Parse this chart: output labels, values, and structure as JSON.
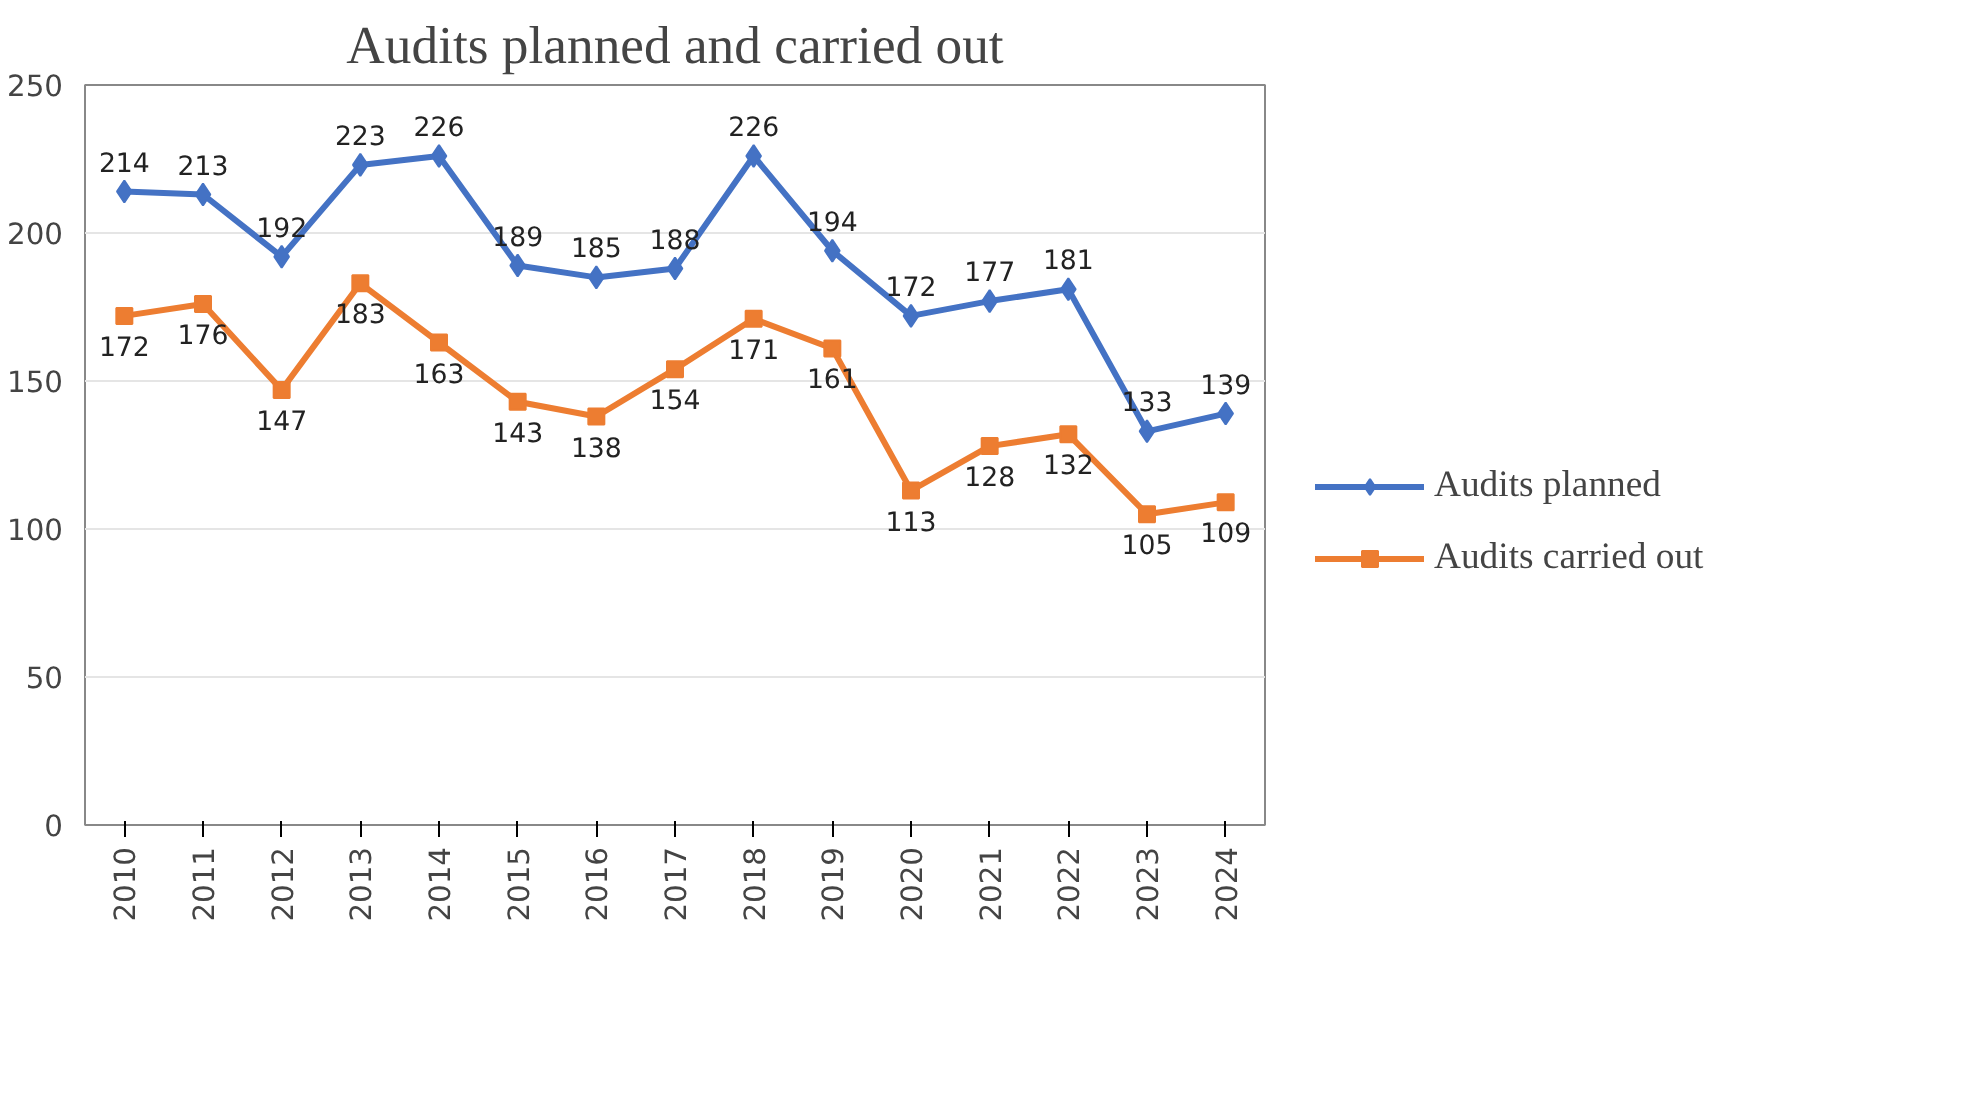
{
  "chart_data": {
    "type": "line",
    "title": "Audits planned and carried out",
    "categories": [
      "2010",
      "2011",
      "2012",
      "2013",
      "2014",
      "2015",
      "2016",
      "2017",
      "2018",
      "2019",
      "2020",
      "2021",
      "2022",
      "2023",
      "2024"
    ],
    "series": [
      {
        "name": "Audits planned",
        "color": "#4472c4",
        "marker": "diamond",
        "values": [
          214,
          213,
          192,
          223,
          226,
          189,
          185,
          188,
          226,
          194,
          172,
          177,
          181,
          133,
          139
        ]
      },
      {
        "name": "Audits carried out",
        "color": "#ed7d31",
        "marker": "square",
        "values": [
          172,
          176,
          147,
          183,
          163,
          143,
          138,
          154,
          171,
          161,
          113,
          128,
          132,
          105,
          109
        ]
      }
    ],
    "ylim": [
      0,
      250
    ],
    "yticks": [
      0,
      50,
      100,
      150,
      200,
      250
    ],
    "grid": "y",
    "legend": "right",
    "data_labels": true,
    "line_style": "solid"
  }
}
